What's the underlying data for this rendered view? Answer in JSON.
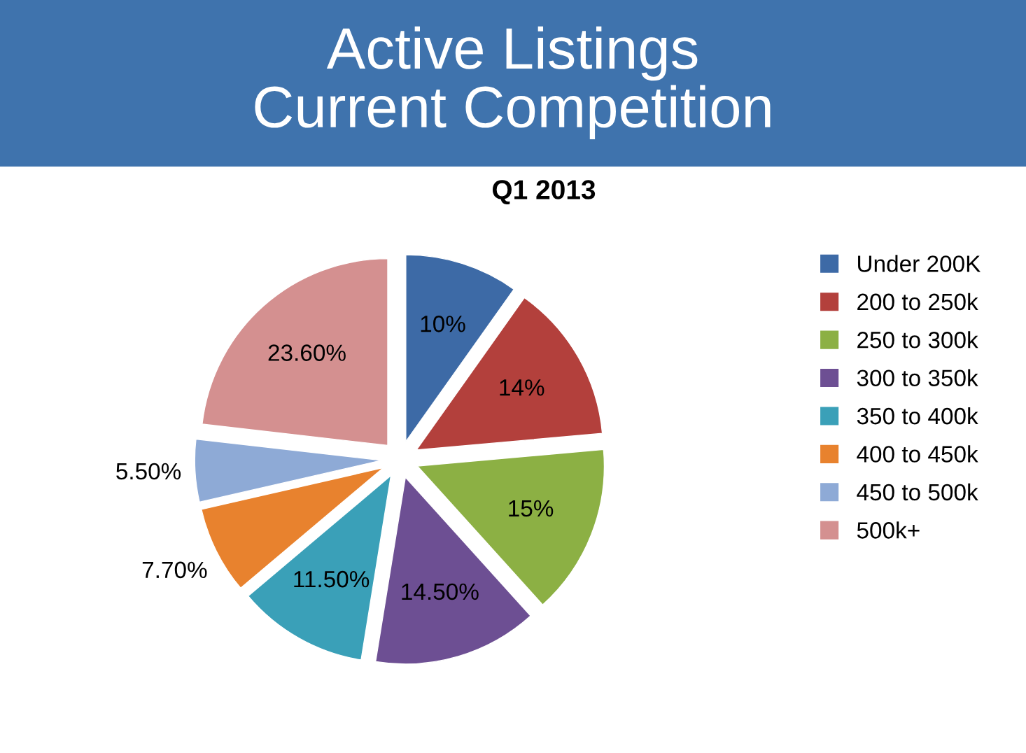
{
  "chart_data": {
    "type": "pie",
    "title": "Active Listings\nCurrent Competition",
    "subtitle": "Q1 2013",
    "categories": [
      "Under 200K",
      "200 to 250k",
      "250 to 300k",
      "300 to 350k",
      "350 to 400k",
      "400 to 450k",
      "450 to 500k",
      "500k+"
    ],
    "values": [
      10,
      14,
      15,
      14.5,
      11.5,
      7.7,
      5.5,
      23.6
    ],
    "value_labels": [
      "10%",
      "14%",
      "15%",
      "14.50%",
      "11.50%",
      "7.70%",
      "5.50%",
      "23.60%"
    ],
    "colors": [
      "#3d6aa6",
      "#b3403c",
      "#8cb044",
      "#6d4f93",
      "#3aa0b8",
      "#e8822e",
      "#8eaad6",
      "#d49090"
    ],
    "legend": "right"
  }
}
